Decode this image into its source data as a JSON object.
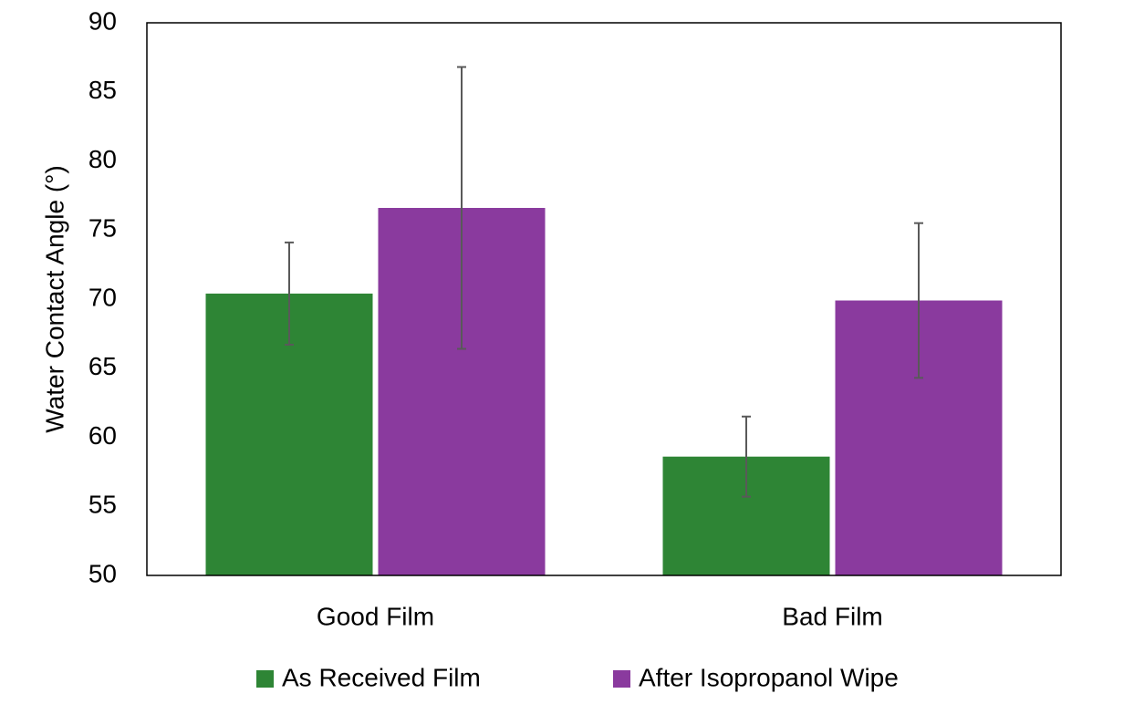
{
  "chart_data": {
    "type": "bar",
    "y_label": "Water Contact Angle (°)",
    "categories": [
      "Good Film",
      "Bad Film"
    ],
    "series": [
      {
        "name": "As Received Film",
        "color": "#2e8535",
        "values": [
          70.4,
          58.6
        ],
        "errors": [
          3.7,
          2.9
        ]
      },
      {
        "name": "After Isopropanol Wipe",
        "color": "#8a3a9e",
        "values": [
          76.6,
          69.9
        ],
        "errors": [
          10.2,
          5.6
        ]
      }
    ],
    "ylim": [
      50,
      90
    ],
    "yticks": [
      50,
      55,
      60,
      65,
      70,
      75,
      80,
      85,
      90
    ],
    "grid": false,
    "legend": "bottom",
    "error_color": "#595959"
  }
}
